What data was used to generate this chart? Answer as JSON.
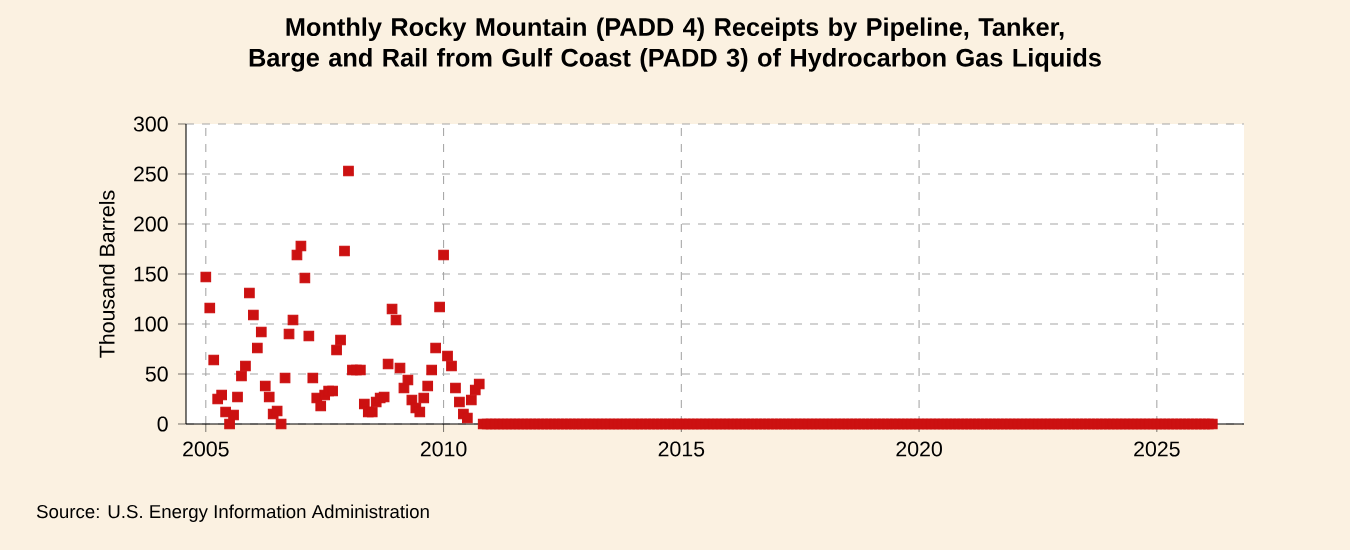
{
  "chart_data": {
    "type": "scatter",
    "title": "Monthly Rocky Mountain (PADD 4) Receipts by Pipeline, Tanker, Barge and Rail from Gulf Coast (PADD 3) of Hydrocarbon Gas Liquids",
    "ylabel": "Thousand Barrels",
    "annotations": [
      "Source: U.S. Energy Information Administration"
    ],
    "x": [
      "2005-01",
      "2005-02",
      "2005-03",
      "2005-04",
      "2005-05",
      "2005-06",
      "2005-07",
      "2005-08",
      "2005-09",
      "2005-10",
      "2005-11",
      "2005-12",
      "2006-01",
      "2006-02",
      "2006-03",
      "2006-04",
      "2006-05",
      "2006-06",
      "2006-07",
      "2006-08",
      "2006-09",
      "2006-10",
      "2006-11",
      "2006-12",
      "2007-01",
      "2007-02",
      "2007-03",
      "2007-04",
      "2007-05",
      "2007-06",
      "2007-07",
      "2007-08",
      "2007-09",
      "2007-10",
      "2007-11",
      "2007-12",
      "2008-01",
      "2008-02",
      "2008-03",
      "2008-04",
      "2008-05",
      "2008-06",
      "2008-07",
      "2008-08",
      "2008-09",
      "2008-10",
      "2008-11",
      "2008-12",
      "2009-01",
      "2009-02",
      "2009-03",
      "2009-04",
      "2009-05",
      "2009-06",
      "2009-07",
      "2009-08",
      "2009-09",
      "2009-10",
      "2009-11",
      "2009-12",
      "2010-01",
      "2010-02",
      "2010-03",
      "2010-04",
      "2010-05",
      "2010-06",
      "2010-07",
      "2010-08",
      "2010-09",
      "2010-10",
      "2010-11",
      "2010-12",
      "2011-01",
      "2011-02",
      "2011-03",
      "2011-04",
      "2011-05",
      "2011-06",
      "2011-07",
      "2011-08",
      "2011-09",
      "2011-10",
      "2011-11",
      "2011-12",
      "2012-01",
      "2012-02",
      "2012-03",
      "2012-04",
      "2012-05",
      "2012-06",
      "2012-07",
      "2012-08",
      "2012-09",
      "2012-10",
      "2012-11",
      "2012-12",
      "2013-01",
      "2013-02",
      "2013-03",
      "2013-04",
      "2013-05",
      "2013-06",
      "2013-07",
      "2013-08",
      "2013-09",
      "2013-10",
      "2013-11",
      "2013-12",
      "2014-01",
      "2014-02",
      "2014-03",
      "2014-04",
      "2014-05",
      "2014-06",
      "2014-07",
      "2014-08",
      "2014-09",
      "2014-10",
      "2014-11",
      "2014-12",
      "2015-01",
      "2015-02",
      "2015-03",
      "2015-04",
      "2015-05",
      "2015-06",
      "2015-07",
      "2015-08",
      "2015-09",
      "2015-10",
      "2015-11",
      "2015-12",
      "2016-01",
      "2016-02",
      "2016-03",
      "2016-04",
      "2016-05",
      "2016-06",
      "2016-07",
      "2016-08",
      "2016-09",
      "2016-10",
      "2016-11",
      "2016-12",
      "2017-01",
      "2017-02",
      "2017-03",
      "2017-04",
      "2017-05",
      "2017-06",
      "2017-07",
      "2017-08",
      "2017-09",
      "2017-10",
      "2017-11",
      "2017-12",
      "2018-01",
      "2018-02",
      "2018-03",
      "2018-04",
      "2018-05",
      "2018-06",
      "2018-07",
      "2018-08",
      "2018-09",
      "2018-10",
      "2018-11",
      "2018-12",
      "2019-01",
      "2019-02",
      "2019-03",
      "2019-04",
      "2019-05",
      "2019-06",
      "2019-07",
      "2019-08",
      "2019-09",
      "2019-10",
      "2019-11",
      "2019-12",
      "2020-01",
      "2020-02",
      "2020-03",
      "2020-04",
      "2020-05",
      "2020-06",
      "2020-07",
      "2020-08",
      "2020-09",
      "2020-10",
      "2020-11",
      "2020-12",
      "2021-01",
      "2021-02",
      "2021-03",
      "2021-04",
      "2021-05",
      "2021-06",
      "2021-07",
      "2021-08",
      "2021-09",
      "2021-10",
      "2021-11",
      "2021-12",
      "2022-01",
      "2022-02",
      "2022-03",
      "2022-04",
      "2022-05",
      "2022-06",
      "2022-07",
      "2022-08",
      "2022-09",
      "2022-10",
      "2022-11",
      "2022-12",
      "2023-01",
      "2023-02",
      "2023-03",
      "2023-04",
      "2023-05",
      "2023-06",
      "2023-07",
      "2023-08",
      "2023-09",
      "2023-10",
      "2023-11",
      "2023-12",
      "2024-01",
      "2024-02",
      "2024-03",
      "2024-04",
      "2024-05",
      "2024-06",
      "2024-07",
      "2024-08",
      "2024-09",
      "2024-10",
      "2024-11",
      "2024-12",
      "2025-01",
      "2025-02",
      "2025-03",
      "2025-04",
      "2025-05",
      "2025-06",
      "2025-07",
      "2025-08",
      "2025-09",
      "2025-10",
      "2025-11",
      "2025-12",
      "2026-01",
      "2026-02",
      "2026-03"
    ],
    "values": [
      147,
      116,
      64,
      25,
      29,
      12,
      0,
      9,
      27,
      48,
      58,
      131,
      109,
      76,
      92,
      38,
      27,
      10,
      13,
      0,
      46,
      90,
      104,
      169,
      178,
      146,
      88,
      46,
      26,
      18,
      29,
      33,
      33,
      74,
      84,
      173,
      253,
      54,
      54,
      54,
      20,
      12,
      12,
      22,
      26,
      27,
      60,
      115,
      104,
      56,
      36,
      44,
      24,
      16,
      12,
      26,
      38,
      54,
      76,
      117,
      169,
      68,
      58,
      36,
      22,
      10,
      6,
      24,
      34,
      40,
      0,
      0,
      0,
      0,
      0,
      0,
      0,
      0,
      0,
      0,
      0,
      0,
      0,
      0,
      0,
      0,
      0,
      0,
      0,
      0,
      0,
      0,
      0,
      0,
      0,
      0,
      0,
      0,
      0,
      0,
      0,
      0,
      0,
      0,
      0,
      0,
      0,
      0,
      0,
      0,
      0,
      0,
      0,
      0,
      0,
      0,
      0,
      0,
      0,
      0,
      0,
      0,
      0,
      0,
      0,
      0,
      0,
      0,
      0,
      0,
      0,
      0,
      0,
      0,
      0,
      0,
      0,
      0,
      0,
      0,
      0,
      0,
      0,
      0,
      0,
      0,
      0,
      0,
      0,
      0,
      0,
      0,
      0,
      0,
      0,
      0,
      0,
      0,
      0,
      0,
      0,
      0,
      0,
      0,
      0,
      0,
      0,
      0,
      0,
      0,
      0,
      0,
      0,
      0,
      0,
      0,
      0,
      0,
      0,
      0,
      0,
      0,
      0,
      0,
      0,
      0,
      0,
      0,
      0,
      0,
      0,
      0,
      0,
      0,
      0,
      0,
      0,
      0,
      0,
      0,
      0,
      0,
      0,
      0,
      0,
      0,
      0,
      0,
      0,
      0,
      0,
      0,
      0,
      0,
      0,
      0,
      0,
      0,
      0,
      0,
      0,
      0,
      0,
      0,
      0,
      0,
      0,
      0,
      0,
      0,
      0,
      0,
      0,
      0,
      0,
      0,
      0,
      0,
      0,
      0,
      0,
      0,
      0,
      0,
      0,
      0,
      0,
      0,
      0,
      0,
      0,
      0,
      0,
      0,
      0
    ],
    "color": "#cc1111",
    "marker": "square",
    "grid": true,
    "xlim": [
      "2004-08",
      "2026-11"
    ],
    "xticks": [
      "2005",
      "2010",
      "2015",
      "2020",
      "2025"
    ],
    "ylim": [
      0,
      300
    ],
    "yticks": [
      0,
      50,
      100,
      150,
      200,
      250,
      300
    ]
  }
}
